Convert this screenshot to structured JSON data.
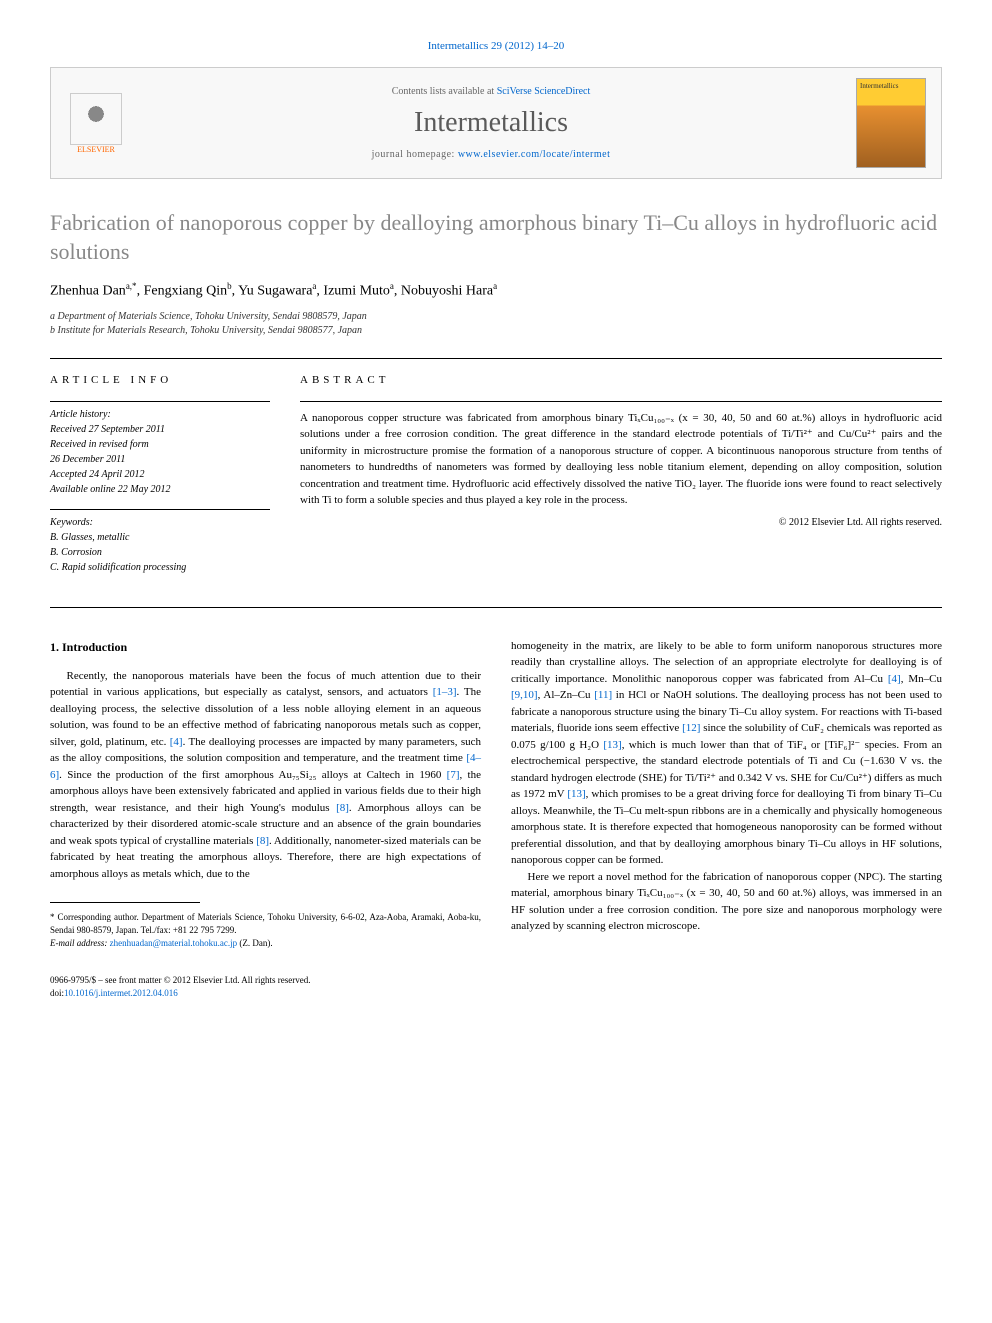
{
  "journal_ref": "Intermetallics 29 (2012) 14–20",
  "header": {
    "elsevier_label": "ELSEVIER",
    "contents_text": "Contents lists available at ",
    "contents_link": "SciVerse ScienceDirect",
    "journal_title": "Intermetallics",
    "homepage_label": "journal homepage: ",
    "homepage_url": "www.elsevier.com/locate/intermet",
    "cover_label": "Intermetallics"
  },
  "title": "Fabrication of nanoporous copper by dealloying amorphous binary Ti–Cu alloys in hydrofluoric acid solutions",
  "authors_html": "Zhenhua Dan<sup>a,*</sup>, Fengxiang Qin<sup>b</sup>, Yu Sugawara<sup>a</sup>, Izumi Muto<sup>a</sup>, Nobuyoshi Hara<sup>a</sup>",
  "affiliations": {
    "a": "a Department of Materials Science, Tohoku University, Sendai 9808579, Japan",
    "b": "b Institute for Materials Research, Tohoku University, Sendai 9808577, Japan"
  },
  "article_info_header": "ARTICLE INFO",
  "abstract_header": "ABSTRACT",
  "history": {
    "label": "Article history:",
    "received": "Received 27 September 2011",
    "revised_label": "Received in revised form",
    "revised_date": "26 December 2011",
    "accepted": "Accepted 24 April 2012",
    "online": "Available online 22 May 2012"
  },
  "keywords": {
    "label": "Keywords:",
    "k1": "B. Glasses, metallic",
    "k2": "B. Corrosion",
    "k3": "C. Rapid solidification processing"
  },
  "abstract": "A nanoporous copper structure was fabricated from amorphous binary TiₓCu₁₀₀₋ₓ (x = 30, 40, 50 and 60 at.%) alloys in hydrofluoric acid solutions under a free corrosion condition. The great difference in the standard electrode potentials of Ti/Ti²⁺ and Cu/Cu²⁺ pairs and the uniformity in microstructure promise the formation of a nanoporous structure of copper. A bicontinuous nanoporous structure from tenths of nanometers to hundredths of nanometers was formed by dealloying less noble titanium element, depending on alloy composition, solution concentration and treatment time. Hydrofluoric acid effectively dissolved the native TiO₂ layer. The fluoride ions were found to react selectively with Ti to form a soluble species and thus played a key role in the process.",
  "copyright": "© 2012 Elsevier Ltd. All rights reserved.",
  "intro_heading": "1. Introduction",
  "body": {
    "col1_p1_a": "Recently, the nanoporous materials have been the focus of much attention due to their potential in various applications, but especially as catalyst, sensors, and actuators ",
    "ref_1_3": "[1–3]",
    "col1_p1_b": ". The dealloying process, the selective dissolution of a less noble alloying element in an aqueous solution, was found to be an effective method of fabricating nanoporous metals such as copper, silver, gold, platinum, etc. ",
    "ref_4a": "[4]",
    "col1_p1_c": ". The dealloying processes are impacted by many parameters, such as the alloy compositions, the solution composition and temperature, and the treatment time ",
    "ref_4_6": "[4–6]",
    "col1_p1_d": ". Since the production of the first amorphous Au₇₅Si₂₅ alloys at Caltech in 1960 ",
    "ref_7": "[7]",
    "col1_p1_e": ", the amorphous alloys have been extensively fabricated and applied in various fields due to their high strength, wear resistance, and their high Young's modulus ",
    "ref_8a": "[8]",
    "col1_p1_f": ". Amorphous alloys can be characterized by their disordered atomic-scale structure and an absence of the grain boundaries and weak spots typical of crystalline materials ",
    "ref_8b": "[8]",
    "col1_p1_g": ". Additionally, nanometer-sized materials can be fabricated by heat treating the amorphous alloys. Therefore, there are high expectations of amorphous alloys as metals which, due to the",
    "col2_p1_a": "homogeneity in the matrix, are likely to be able to form uniform nanoporous structures more readily than crystalline alloys. The selection of an appropriate electrolyte for dealloying is of critically importance. Monolithic nanoporous copper was fabricated from Al–Cu ",
    "ref_4b": "[4]",
    "col2_p1_b": ", Mn–Cu ",
    "ref_9_10": "[9,10]",
    "col2_p1_c": ", Al–Zn–Cu ",
    "ref_11": "[11]",
    "col2_p1_d": " in HCl or NaOH solutions. The dealloying process has not been used to fabricate a nanoporous structure using the binary Ti–Cu alloy system. For reactions with Ti-based materials, fluoride ions seem effective ",
    "ref_12": "[12]",
    "col2_p1_e": " since the solubility of CuF₂ chemicals was reported as 0.075 g/100 g H₂O ",
    "ref_13a": "[13]",
    "col2_p1_f": ", which is much lower than that of TiF₄ or [TiF₆]²⁻ species. From an electrochemical perspective, the standard electrode potentials of Ti and Cu (−1.630 V vs. the standard hydrogen electrode (SHE) for Ti/Ti²⁺ and 0.342 V vs. SHE for Cu/Cu²⁺) differs as much as 1972 mV ",
    "ref_13b": "[13]",
    "col2_p1_g": ", which promises to be a great driving force for dealloying Ti from binary Ti–Cu alloys. Meanwhile, the Ti–Cu melt-spun ribbons are in a chemically and physically homogeneous amorphous state. It is therefore expected that homogeneous nanoporosity can be formed without preferential dissolution, and that by dealloying amorphous binary Ti–Cu alloys in HF solutions, nanoporous copper can be formed.",
    "col2_p2": "Here we report a novel method for the fabrication of nanoporous copper (NPC). The starting material, amorphous binary TiₓCu₁₀₀₋ₓ (x = 30, 40, 50 and 60 at.%) alloys, was immersed in an HF solution under a free corrosion condition. The pore size and nanoporous morphology were analyzed by scanning electron microscope."
  },
  "footnote": {
    "corresponding": "* Corresponding author. Department of Materials Science, Tohoku University, 6-6-02, Aza-Aoba, Aramaki, Aoba-ku, Sendai 980-8579, Japan. Tel./fax: +81 22 795 7299.",
    "email_label": "E-mail address: ",
    "email": "zhenhuadan@material.tohoku.ac.jp",
    "email_suffix": " (Z. Dan)."
  },
  "doi": {
    "line1": "0966-9795/$ – see front matter © 2012 Elsevier Ltd. All rights reserved.",
    "line2_label": "doi:",
    "line2_link": "10.1016/j.intermet.2012.04.016"
  },
  "colors": {
    "link": "#0066cc",
    "title_gray": "#888888",
    "elsevier_orange": "#ff6600"
  }
}
